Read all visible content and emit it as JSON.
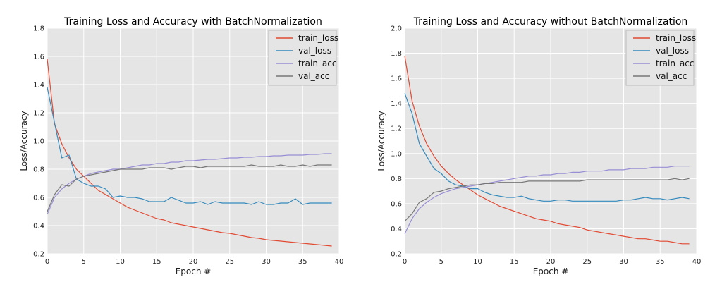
{
  "chart_data": [
    {
      "type": "line",
      "title": "Training Loss and Accuracy with BatchNormalization",
      "xlabel": "Epoch #",
      "ylabel": "Loss/Accuracy",
      "xlim": [
        0,
        40
      ],
      "ylim": [
        0.2,
        1.8
      ],
      "xticks": [
        "0",
        "5",
        "10",
        "15",
        "20",
        "25",
        "30",
        "35",
        "40"
      ],
      "yticks": [
        "0.2",
        "0.4",
        "0.6",
        "0.8",
        "1.0",
        "1.2",
        "1.4",
        "1.6",
        "1.8"
      ],
      "grid": true,
      "legend_position": "top-right",
      "x": [
        0,
        1,
        2,
        3,
        4,
        5,
        6,
        7,
        8,
        9,
        10,
        11,
        12,
        13,
        14,
        15,
        16,
        17,
        18,
        19,
        20,
        21,
        22,
        23,
        24,
        25,
        26,
        27,
        28,
        29,
        30,
        31,
        32,
        33,
        34,
        35,
        36,
        37,
        38,
        39
      ],
      "series": [
        {
          "name": "train_loss",
          "color": "#e24a33",
          "values": [
            1.58,
            1.12,
            0.98,
            0.88,
            0.8,
            0.75,
            0.7,
            0.65,
            0.62,
            0.59,
            0.56,
            0.53,
            0.51,
            0.49,
            0.47,
            0.45,
            0.44,
            0.42,
            0.41,
            0.4,
            0.39,
            0.38,
            0.37,
            0.36,
            0.35,
            0.345,
            0.335,
            0.325,
            0.315,
            0.31,
            0.3,
            0.295,
            0.29,
            0.285,
            0.28,
            0.275,
            0.27,
            0.265,
            0.26,
            0.255
          ]
        },
        {
          "name": "val_loss",
          "color": "#348abd",
          "values": [
            1.38,
            1.13,
            0.88,
            0.9,
            0.73,
            0.7,
            0.68,
            0.68,
            0.66,
            0.6,
            0.61,
            0.6,
            0.6,
            0.59,
            0.57,
            0.57,
            0.57,
            0.6,
            0.58,
            0.56,
            0.56,
            0.57,
            0.55,
            0.57,
            0.56,
            0.56,
            0.56,
            0.56,
            0.55,
            0.57,
            0.55,
            0.55,
            0.56,
            0.56,
            0.59,
            0.55,
            0.56,
            0.56,
            0.56,
            0.56
          ]
        },
        {
          "name": "train_acc",
          "color": "#988ed5",
          "values": [
            0.48,
            0.6,
            0.66,
            0.7,
            0.73,
            0.75,
            0.77,
            0.78,
            0.79,
            0.8,
            0.8,
            0.81,
            0.82,
            0.83,
            0.83,
            0.84,
            0.84,
            0.85,
            0.85,
            0.86,
            0.86,
            0.865,
            0.87,
            0.87,
            0.875,
            0.88,
            0.88,
            0.885,
            0.885,
            0.89,
            0.89,
            0.895,
            0.895,
            0.9,
            0.9,
            0.9,
            0.905,
            0.905,
            0.91,
            0.91
          ]
        },
        {
          "name": "val_acc",
          "color": "#777777",
          "values": [
            0.5,
            0.62,
            0.69,
            0.68,
            0.73,
            0.75,
            0.76,
            0.77,
            0.78,
            0.79,
            0.8,
            0.8,
            0.8,
            0.8,
            0.81,
            0.81,
            0.81,
            0.8,
            0.81,
            0.82,
            0.82,
            0.81,
            0.82,
            0.82,
            0.82,
            0.82,
            0.82,
            0.82,
            0.83,
            0.82,
            0.82,
            0.82,
            0.83,
            0.82,
            0.82,
            0.83,
            0.82,
            0.83,
            0.83,
            0.83
          ]
        }
      ]
    },
    {
      "type": "line",
      "title": "Training Loss and Accuracy without BatchNormalization",
      "xlabel": "Epoch #",
      "ylabel": "Loss/Accuracy",
      "xlim": [
        0,
        40
      ],
      "ylim": [
        0.2,
        2.0
      ],
      "xticks": [
        "0",
        "5",
        "10",
        "15",
        "20",
        "25",
        "30",
        "35",
        "40"
      ],
      "yticks": [
        "0.2",
        "0.4",
        "0.6",
        "0.8",
        "1.0",
        "1.2",
        "1.4",
        "1.6",
        "1.8",
        "2.0"
      ],
      "grid": true,
      "legend_position": "top-right",
      "x": [
        0,
        1,
        2,
        3,
        4,
        5,
        6,
        7,
        8,
        9,
        10,
        11,
        12,
        13,
        14,
        15,
        16,
        17,
        18,
        19,
        20,
        21,
        22,
        23,
        24,
        25,
        26,
        27,
        28,
        29,
        30,
        31,
        32,
        33,
        34,
        35,
        36,
        37,
        38,
        39
      ],
      "series": [
        {
          "name": "train_loss",
          "color": "#e24a33",
          "values": [
            1.78,
            1.42,
            1.22,
            1.08,
            0.98,
            0.9,
            0.84,
            0.79,
            0.75,
            0.71,
            0.67,
            0.64,
            0.61,
            0.58,
            0.56,
            0.54,
            0.52,
            0.5,
            0.48,
            0.47,
            0.46,
            0.44,
            0.43,
            0.42,
            0.41,
            0.39,
            0.38,
            0.37,
            0.36,
            0.35,
            0.34,
            0.33,
            0.32,
            0.32,
            0.31,
            0.3,
            0.3,
            0.29,
            0.28,
            0.28
          ]
        },
        {
          "name": "val_loss",
          "color": "#348abd",
          "values": [
            1.48,
            1.32,
            1.08,
            0.98,
            0.88,
            0.84,
            0.78,
            0.75,
            0.74,
            0.72,
            0.72,
            0.69,
            0.67,
            0.66,
            0.65,
            0.65,
            0.66,
            0.64,
            0.63,
            0.62,
            0.62,
            0.63,
            0.63,
            0.62,
            0.62,
            0.62,
            0.62,
            0.62,
            0.62,
            0.62,
            0.63,
            0.63,
            0.64,
            0.65,
            0.64,
            0.64,
            0.63,
            0.64,
            0.65,
            0.64
          ]
        },
        {
          "name": "train_acc",
          "color": "#988ed5",
          "values": [
            0.36,
            0.48,
            0.56,
            0.61,
            0.65,
            0.68,
            0.7,
            0.72,
            0.73,
            0.74,
            0.75,
            0.76,
            0.77,
            0.78,
            0.79,
            0.8,
            0.81,
            0.82,
            0.82,
            0.83,
            0.83,
            0.84,
            0.84,
            0.85,
            0.85,
            0.86,
            0.86,
            0.86,
            0.87,
            0.87,
            0.87,
            0.88,
            0.88,
            0.88,
            0.89,
            0.89,
            0.89,
            0.9,
            0.9,
            0.9
          ]
        },
        {
          "name": "val_acc",
          "color": "#777777",
          "values": [
            0.46,
            0.52,
            0.61,
            0.64,
            0.69,
            0.7,
            0.72,
            0.73,
            0.74,
            0.75,
            0.75,
            0.76,
            0.76,
            0.77,
            0.77,
            0.77,
            0.77,
            0.78,
            0.78,
            0.78,
            0.78,
            0.78,
            0.78,
            0.78,
            0.78,
            0.79,
            0.79,
            0.79,
            0.79,
            0.79,
            0.79,
            0.79,
            0.79,
            0.79,
            0.79,
            0.79,
            0.79,
            0.8,
            0.79,
            0.8
          ]
        }
      ]
    }
  ]
}
